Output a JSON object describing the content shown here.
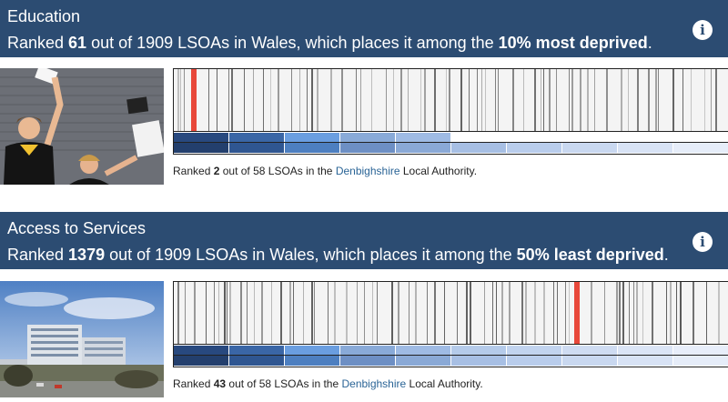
{
  "sections": [
    {
      "title": "Education",
      "rank_prefix": "Ranked ",
      "rank": "61",
      "rank_mid": " out of 1909 LSOAs in Wales, which places it among the ",
      "rank_band": "10% most deprived",
      "rank_suffix": ".",
      "info_icon": "info-icon",
      "photo": "students-celebrating-photo",
      "highlight_fraction": 0.032,
      "highlight_color": "#e8483a",
      "decile_filled": 5,
      "la_prefix": "Ranked ",
      "la_rank": "2",
      "la_mid": " out of 58 LSOAs in the ",
      "la_name": "Denbighshire",
      "la_suffix": " Local Authority."
    },
    {
      "title": "Access to Services",
      "rank_prefix": "Ranked ",
      "rank": "1379",
      "rank_mid": " out of 1909 LSOAs in Wales, which places it among the ",
      "rank_band": "50% least deprived",
      "rank_suffix": ".",
      "info_icon": "info-icon",
      "photo": "hospital-building-photo",
      "highlight_fraction": 0.723,
      "highlight_color": "#e8483a",
      "decile_filled": 10,
      "la_prefix": "Ranked ",
      "la_rank": "43",
      "la_mid": " out of 58 LSOAs in the ",
      "la_name": "Denbighshire",
      "la_suffix": " Local Authority."
    }
  ],
  "decile_colors": [
    "#28497f",
    "#3a66a6",
    "#6a9ee0",
    "#89aad8",
    "#9fbbe4",
    "#b5cbea",
    "#c2d4ef",
    "#cfdcf2",
    "#dbe5f6",
    "#e8eefa"
  ],
  "decile_colors_bottom": [
    "#233f6d",
    "#2f5691",
    "#4d7fc0",
    "#6d8fc4",
    "#8aa9d6",
    "#a7bfe4",
    "#b9cdec",
    "#c9d8f0",
    "#d8e3f5",
    "#e6edf9"
  ]
}
